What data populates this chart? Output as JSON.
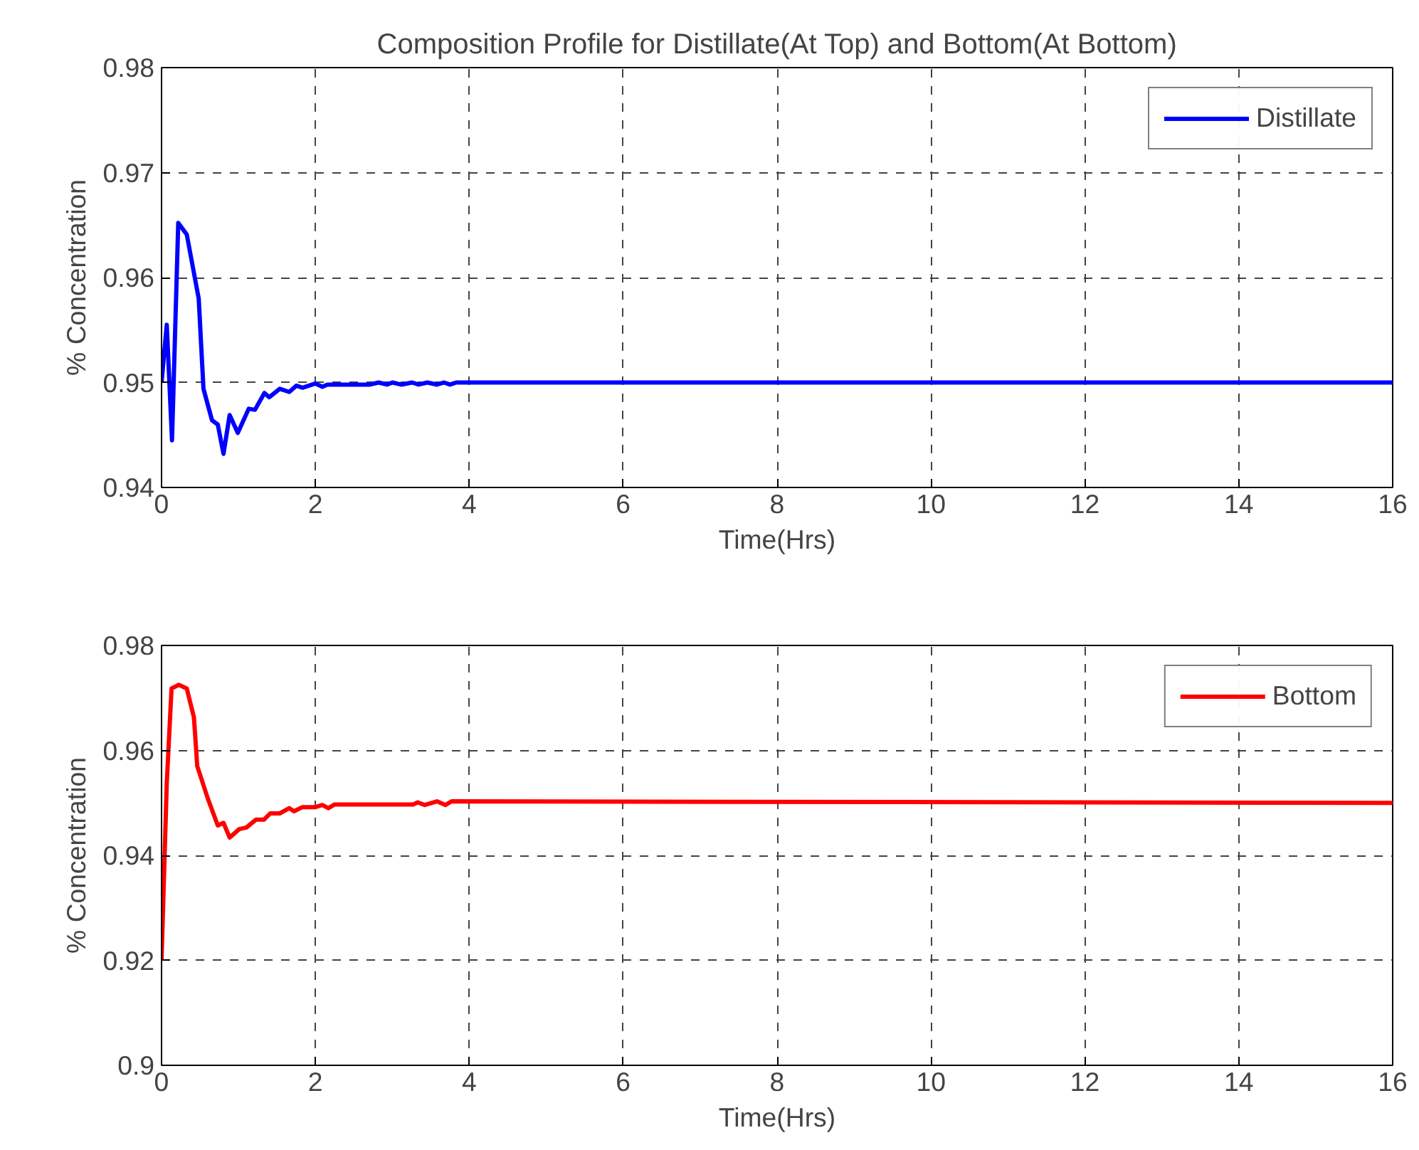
{
  "chart_data": [
    {
      "type": "line",
      "title": "Composition Profile for Distillate(At Top) and Bottom(At Bottom)",
      "xlabel": "Time(Hrs)",
      "ylabel": "% Concentration",
      "xlim": [
        0,
        16
      ],
      "ylim": [
        0.94,
        0.98
      ],
      "xticks": [
        0,
        2,
        4,
        6,
        8,
        10,
        12,
        14,
        16
      ],
      "yticks": [
        {
          "value": 0.94,
          "label": "0.94"
        },
        {
          "value": 0.95,
          "label": "0.95"
        },
        {
          "value": 0.96,
          "label": "0.96"
        },
        {
          "value": 0.97,
          "label": "0.97"
        },
        {
          "value": 0.98,
          "label": "0.98"
        }
      ],
      "grid": true,
      "legend": "top right",
      "line_style": "solid",
      "marker": "none",
      "series": [
        {
          "name": "Distillate",
          "color": "#0000ff",
          "x": [
            0,
            0.068,
            0.136,
            0.217,
            0.328,
            0.483,
            0.545,
            0.656,
            0.731,
            0.805,
            0.885,
            0.991,
            1.133,
            1.214,
            1.337,
            1.4,
            1.536,
            1.66,
            1.752,
            1.833,
            2.0,
            2.09,
            2.155,
            2.71,
            2.82,
            2.93,
            3.0,
            3.115,
            3.257,
            3.34,
            3.455,
            3.58,
            3.67,
            3.75,
            3.83,
            16
          ],
          "values": [
            0.95,
            0.9555,
            0.9445,
            0.9652,
            0.9641,
            0.958,
            0.9494,
            0.9464,
            0.946,
            0.9432,
            0.9469,
            0.9452,
            0.9475,
            0.9474,
            0.949,
            0.9486,
            0.9494,
            0.9491,
            0.9497,
            0.9495,
            0.9499,
            0.9496,
            0.9498,
            0.9498,
            0.95,
            0.9498,
            0.95,
            0.9498,
            0.95,
            0.9498,
            0.95,
            0.9498,
            0.95,
            0.9498,
            0.95,
            0.95
          ]
        }
      ]
    },
    {
      "type": "line",
      "xlabel": "Time(Hrs)",
      "ylabel": "% Concentration",
      "xlim": [
        0,
        16
      ],
      "ylim": [
        0.9,
        0.98
      ],
      "xticks": [
        0,
        2,
        4,
        6,
        8,
        10,
        12,
        14,
        16
      ],
      "yticks": [
        {
          "value": 0.9,
          "label": "0.9"
        },
        {
          "value": 0.92,
          "label": "0.92"
        },
        {
          "value": 0.94,
          "label": "0.94"
        },
        {
          "value": 0.96,
          "label": "0.96"
        },
        {
          "value": 0.98,
          "label": "0.98"
        }
      ],
      "grid": true,
      "legend": "top right",
      "line_style": "solid",
      "marker": "none",
      "series": [
        {
          "name": "Bottom",
          "color": "#ff0000",
          "x": [
            0,
            0.068,
            0.13,
            0.223,
            0.328,
            0.421,
            0.464,
            0.607,
            0.731,
            0.805,
            0.885,
            1.009,
            1.102,
            1.226,
            1.331,
            1.412,
            1.536,
            1.66,
            1.721,
            1.833,
            2.0,
            2.09,
            2.167,
            2.25,
            3.27,
            3.33,
            3.42,
            3.58,
            3.69,
            3.77,
            16
          ],
          "values": [
            0.92,
            0.9538,
            0.9718,
            0.9725,
            0.9718,
            0.9663,
            0.957,
            0.9506,
            0.9457,
            0.9462,
            0.9434,
            0.945,
            0.9453,
            0.9468,
            0.9468,
            0.948,
            0.948,
            0.949,
            0.9484,
            0.9492,
            0.9492,
            0.9496,
            0.949,
            0.9497,
            0.9497,
            0.9501,
            0.9496,
            0.9503,
            0.9496,
            0.9503,
            0.95
          ]
        }
      ]
    }
  ]
}
